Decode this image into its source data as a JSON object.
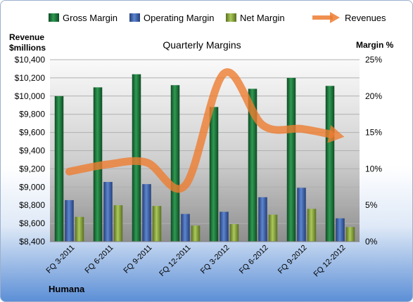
{
  "company": "Humana",
  "chart_data": {
    "type": "bar",
    "title": "Quarterly Margins",
    "ylabel_left": [
      "Revenue",
      "$millions"
    ],
    "ylabel_right": "Margin %",
    "categories": [
      "FQ 3-2011",
      "FQ 6-2011",
      "FQ 9-2011",
      "FQ 12-2011",
      "FQ 3-2012",
      "FQ 6-2012",
      "FQ 9-2012",
      "FQ 12-2012"
    ],
    "left_axis": {
      "min": 8400,
      "max": 10400,
      "step": 200
    },
    "right_axis": {
      "min": 0,
      "max": 25,
      "step": 5,
      "unit": "%"
    },
    "left_tick_labels": [
      "$8,400",
      "$8,600",
      "$8,800",
      "$9,000",
      "$9,200",
      "$9,400",
      "$9,600",
      "$9,800",
      "$10,000",
      "$10,200",
      "$10,400"
    ],
    "right_tick_labels": [
      "0%",
      "5%",
      "10%",
      "15%",
      "20%",
      "25%"
    ],
    "series": [
      {
        "name": "Gross Margin",
        "kind": "bar",
        "axis": "right",
        "color": "#1e7b3e",
        "values": [
          20.0,
          21.2,
          23.0,
          21.5,
          18.5,
          21.0,
          22.5,
          21.4
        ]
      },
      {
        "name": "Operating Margin",
        "kind": "bar",
        "axis": "right",
        "color": "#3c64b4",
        "values": [
          5.7,
          8.2,
          7.9,
          3.8,
          4.1,
          6.1,
          7.4,
          3.2
        ]
      },
      {
        "name": "Net Margin",
        "kind": "bar",
        "axis": "right",
        "color": "#8fad3d",
        "values": [
          3.4,
          5.0,
          4.9,
          2.2,
          2.4,
          3.7,
          4.5,
          2.0
        ]
      },
      {
        "name": "Revenues",
        "kind": "line",
        "axis": "left",
        "color": "#ed7d31",
        "values": [
          9170,
          9250,
          9270,
          9020,
          10250,
          9680,
          9640,
          9560
        ]
      }
    ],
    "grid": true,
    "legend_position": "top"
  }
}
